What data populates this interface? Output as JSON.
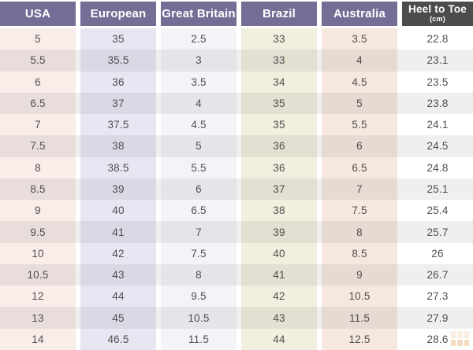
{
  "chart_data": {
    "type": "table",
    "columns": [
      "USA",
      "European",
      "Great Britain",
      "Brazil",
      "Australia",
      "Heel to Toe (cm)"
    ],
    "rows": [
      [
        "5",
        "35",
        "2.5",
        "33",
        "3.5",
        "22.8"
      ],
      [
        "5.5",
        "35.5",
        "3",
        "33",
        "4",
        "23.1"
      ],
      [
        "6",
        "36",
        "3.5",
        "34",
        "4.5",
        "23.5"
      ],
      [
        "6.5",
        "37",
        "4",
        "35",
        "5",
        "23.8"
      ],
      [
        "7",
        "37.5",
        "4.5",
        "35",
        "5.5",
        "24.1"
      ],
      [
        "7.5",
        "38",
        "5",
        "36",
        "6",
        "24.5"
      ],
      [
        "8",
        "38.5",
        "5.5",
        "36",
        "6.5",
        "24.8"
      ],
      [
        "8.5",
        "39",
        "6",
        "37",
        "7",
        "25.1"
      ],
      [
        "9",
        "40",
        "6.5",
        "38",
        "7.5",
        "25.4"
      ],
      [
        "9.5",
        "41",
        "7",
        "39",
        "8",
        "25.7"
      ],
      [
        "10",
        "42",
        "7.5",
        "40",
        "8.5",
        "26"
      ],
      [
        "10.5",
        "43",
        "8",
        "41",
        "9",
        "26.7"
      ],
      [
        "12",
        "44",
        "9.5",
        "42",
        "10.5",
        "27.3"
      ],
      [
        "13",
        "45",
        "10.5",
        "43",
        "11.5",
        "27.9"
      ],
      [
        "14",
        "46.5",
        "11.5",
        "44",
        "12.5",
        "28.6"
      ]
    ]
  },
  "headers": [
    {
      "label": "USA"
    },
    {
      "label": "European"
    },
    {
      "label": "Great Britain"
    },
    {
      "label": "Brazil"
    },
    {
      "label": "Australia"
    },
    {
      "label": "Heel to Toe",
      "sublabel": "(cm)"
    }
  ],
  "colors": {
    "background": "#ffffff",
    "header_purple": "#756d95",
    "header_dark": "#4c4c4c",
    "header_text": "#ffffff",
    "body_text": "#4f4f4f",
    "columns": [
      "#f9ece9",
      "#e7e6f2",
      "#f4f4f8",
      "#f1efdd",
      "#f6e8de",
      "#ffffff"
    ],
    "row_stripe": "rgba(73,73,84,0.09)",
    "watermark_orange": "#e0a15f"
  }
}
